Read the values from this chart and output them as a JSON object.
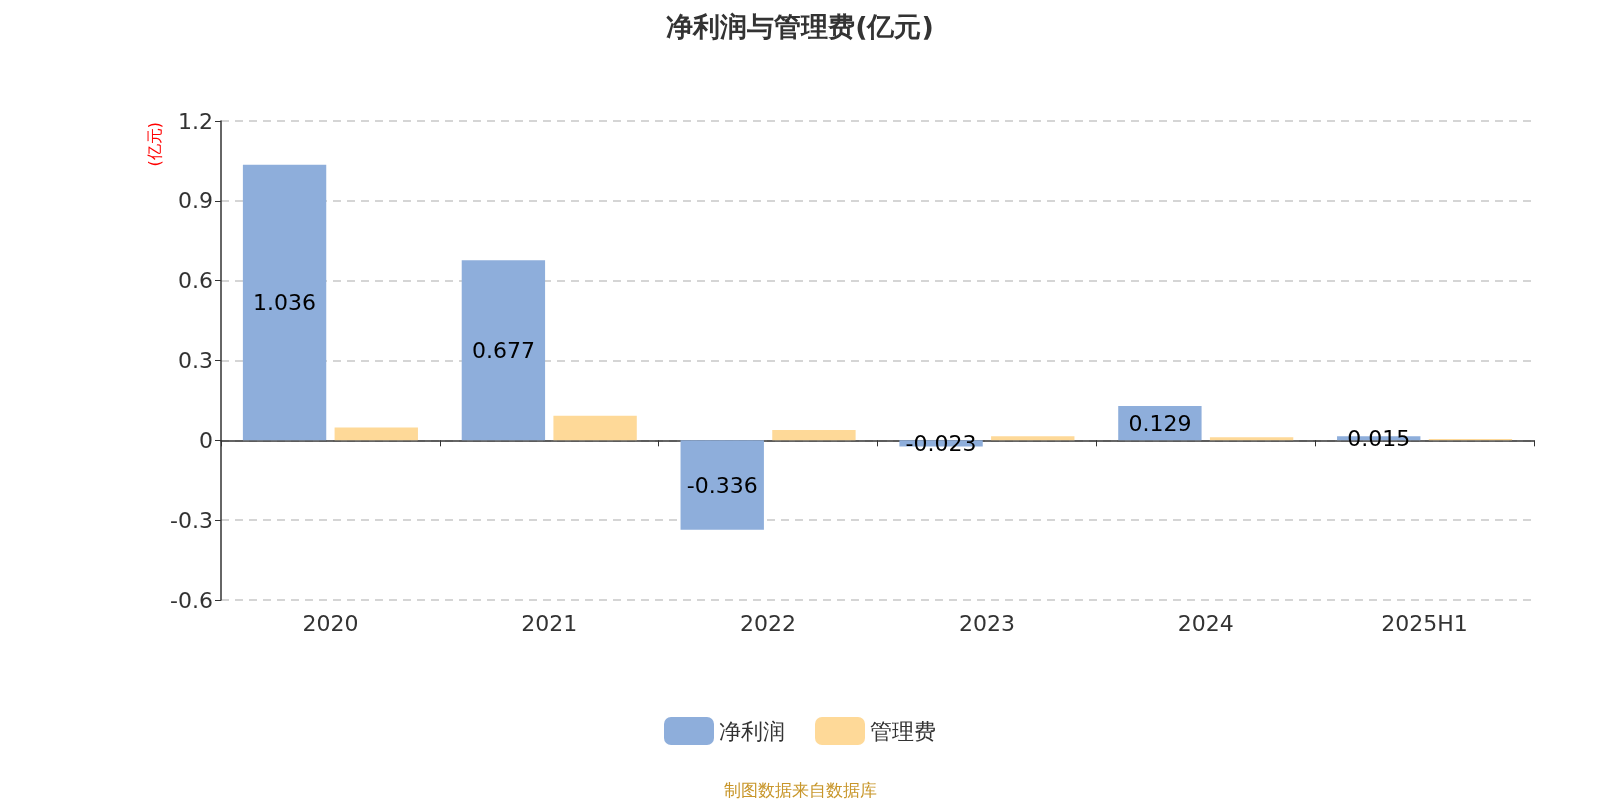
{
  "chart_data": {
    "type": "bar",
    "title": "净利润与管理费(亿元)",
    "ylabel": "(亿元)",
    "categories": [
      "2020",
      "2021",
      "2022",
      "2023",
      "2024",
      "2025H1"
    ],
    "series": [
      {
        "name": "净利润",
        "color": "#8eaedb",
        "values": [
          1.036,
          0.677,
          -0.336,
          -0.023,
          0.129,
          0.015
        ],
        "value_labels": [
          "1.036",
          "0.677",
          "-0.336",
          "-0.023",
          "0.129",
          "0.015"
        ]
      },
      {
        "name": "管理费",
        "color": "#fed998",
        "values": [
          0.048,
          0.092,
          0.039,
          0.015,
          0.012,
          0.005
        ]
      }
    ],
    "ylim": [
      -0.6,
      1.2
    ],
    "yticks": [
      -0.6,
      -0.3,
      0,
      0.3,
      0.6,
      0.9,
      1.2
    ],
    "grid": "y",
    "legend": "bottom",
    "annotations": [
      "制图数据来自数据库"
    ]
  }
}
